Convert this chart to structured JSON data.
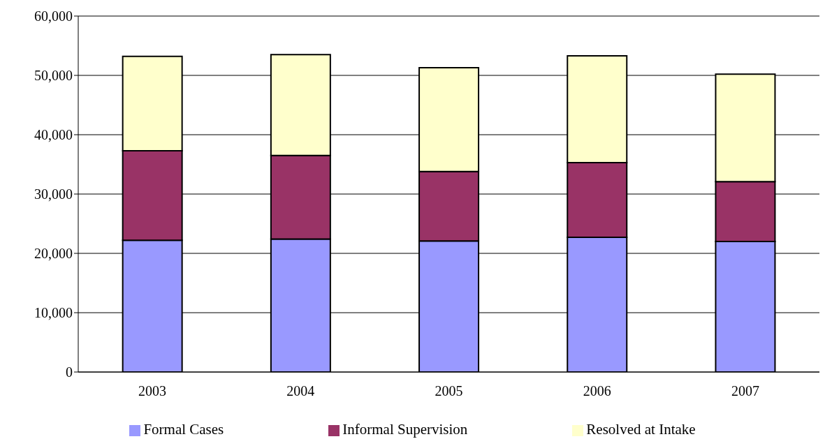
{
  "chart_data": {
    "type": "bar",
    "stacked": true,
    "categories": [
      "2003",
      "2004",
      "2005",
      "2006",
      "2007"
    ],
    "series": [
      {
        "name": "Formal Cases",
        "color": "#9999ff",
        "values": [
          22200,
          22400,
          22100,
          22700,
          22000
        ]
      },
      {
        "name": "Informal Supervision",
        "color": "#993366",
        "values": [
          15100,
          14100,
          11700,
          12600,
          10100
        ]
      },
      {
        "name": "Resolved at Intake",
        "color": "#ffffcc",
        "values": [
          15900,
          17000,
          17500,
          18000,
          18100
        ]
      }
    ],
    "ylim": [
      0,
      60000
    ],
    "yticks": [
      0,
      {
        "value": 10000,
        "label": "10,000"
      },
      {
        "value": 20000,
        "label": "20,000"
      },
      {
        "value": 30000,
        "label": "30,000"
      },
      {
        "value": 40000,
        "label": "40,000"
      },
      {
        "value": 50000,
        "label": "50,000"
      },
      {
        "value": 60000,
        "label": "60,000"
      }
    ],
    "grid": "y",
    "legend": "bottom"
  }
}
